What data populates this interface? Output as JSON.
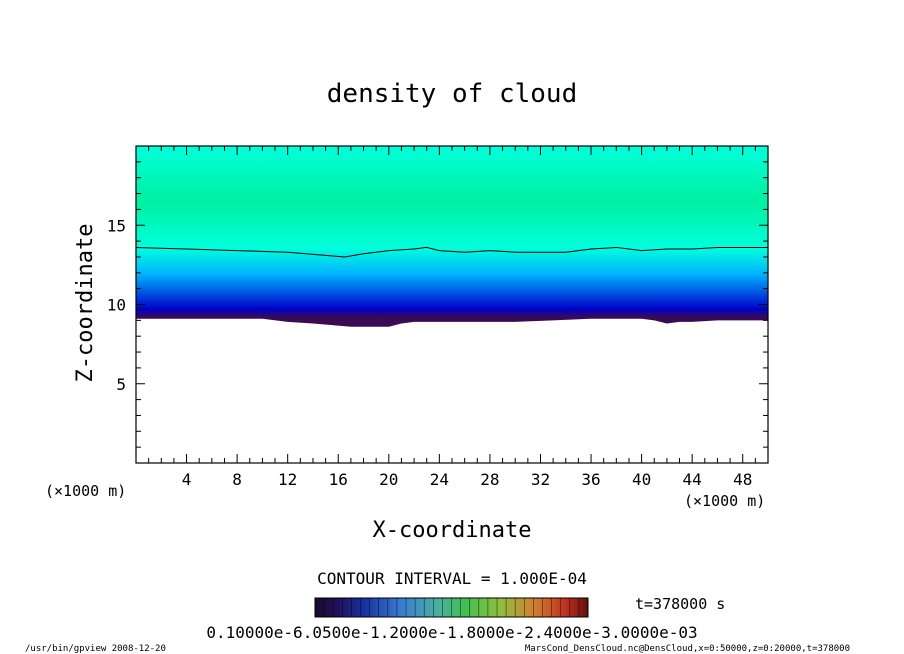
{
  "chart_data": {
    "type": "heatmap",
    "title": "density of cloud",
    "xlabel": "X-coordinate",
    "ylabel": "Z-coordinate",
    "x_unit_left": "(×1000 m)",
    "x_unit_right": "(×1000 m)",
    "xlim": [
      0,
      50
    ],
    "ylim": [
      0,
      20
    ],
    "xticks": [
      "4",
      "8",
      "12",
      "16",
      "20",
      "24",
      "28",
      "32",
      "36",
      "40",
      "44",
      "48"
    ],
    "yticks": [
      "5",
      "10",
      "15"
    ],
    "contour_interval": "CONTOUR INTERVAL = 1.000E-04",
    "time_label": "t=378000 s",
    "colorbar_labels": "0.10000e-6.0500e-1.2000e-1.8000e-2.4000e-3.0000e-03",
    "cloud_base_profile": {
      "x": [
        0,
        10,
        12,
        14,
        17,
        20,
        21,
        22,
        25,
        28,
        30,
        33,
        36,
        40,
        41,
        42,
        43,
        44,
        46,
        50
      ],
      "z": [
        9.1,
        9.1,
        8.9,
        8.8,
        8.6,
        8.6,
        8.8,
        8.9,
        8.9,
        8.9,
        8.9,
        9.0,
        9.1,
        9.1,
        9.0,
        8.8,
        8.9,
        8.9,
        9.0,
        9.0
      ]
    },
    "contour_line": {
      "x": [
        0,
        4,
        8,
        12,
        15,
        16.5,
        18,
        20,
        22,
        23,
        24,
        26,
        28,
        30,
        32,
        34,
        36,
        38,
        40,
        42,
        44,
        46,
        48,
        50
      ],
      "z": [
        13.6,
        13.5,
        13.4,
        13.3,
        13.1,
        13.0,
        13.2,
        13.4,
        13.5,
        13.6,
        13.4,
        13.3,
        13.4,
        13.3,
        13.3,
        13.3,
        13.5,
        13.6,
        13.4,
        13.5,
        13.5,
        13.6,
        13.6,
        13.6
      ]
    },
    "colors": [
      "#3a0a55",
      "#0000c8",
      "#00b4ff",
      "#00ffdc",
      "#00f0a0",
      "#ff4000"
    ],
    "grid": false
  },
  "footer": {
    "left": "/usr/bin/gpview   2008-12-20",
    "right": "MarsCond_DensCloud.nc@DensCloud,x=0:50000,z=0:20000,t=378000"
  }
}
